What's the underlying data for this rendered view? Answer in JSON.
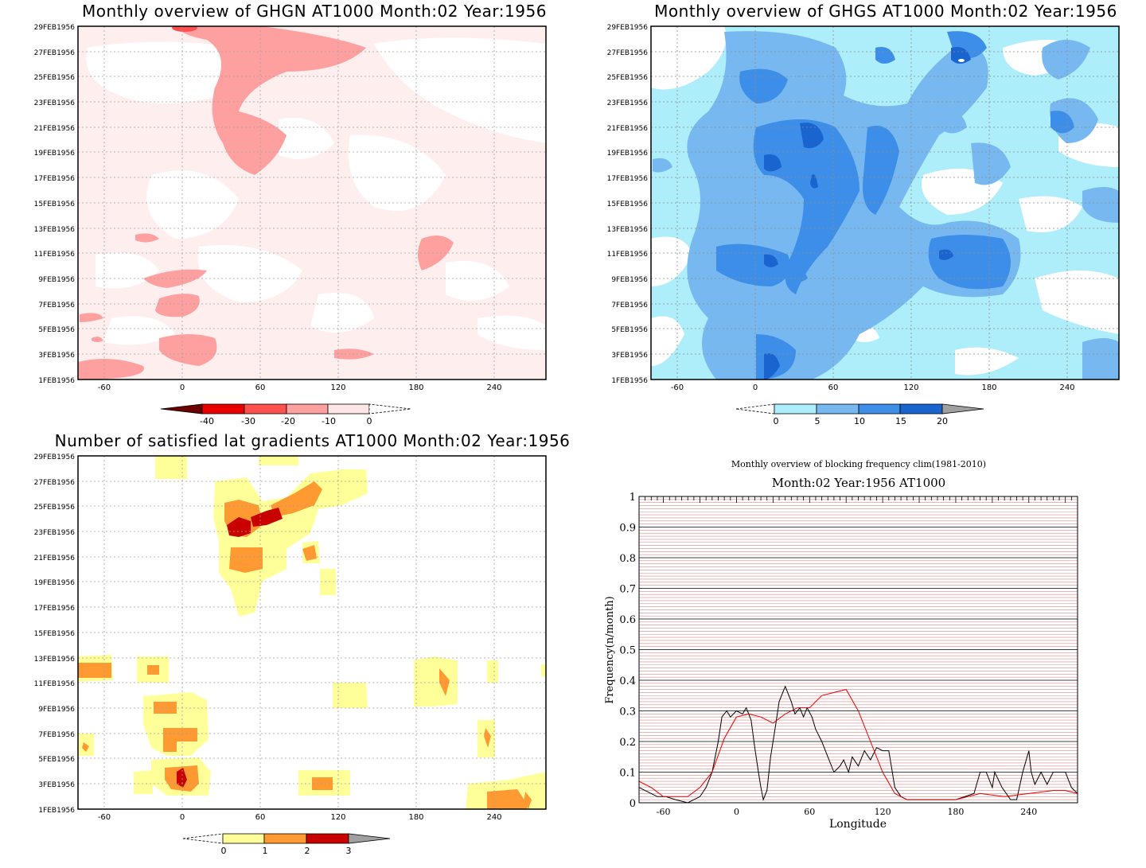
{
  "panels": {
    "ghgn": {
      "title": "Monthly overview of GHGN AT1000 Month:02 Year:1956",
      "y_ticks": [
        "1FEB1956",
        "3FEB1956",
        "5FEB1956",
        "7FEB1956",
        "9FEB1956",
        "11FEB1956",
        "13FEB1956",
        "15FEB1956",
        "17FEB1956",
        "19FEB1956",
        "21FEB1956",
        "23FEB1956",
        "25FEB1956",
        "27FEB1956",
        "29FEB1956"
      ],
      "x_ticks": [
        "-60",
        "0",
        "60",
        "120",
        "180",
        "240"
      ],
      "colorbar": {
        "labels": [
          "-40",
          "-30",
          "-20",
          "-10",
          "0"
        ],
        "colors": [
          "#e80000",
          "#ff5050",
          "#ffa0a0",
          "#ffe6e6"
        ],
        "low_arrow_color": "#6b0000"
      },
      "colors": {
        "background": "#ffeeee",
        "level1": "#ffa0a0",
        "level2": "#ff6060"
      }
    },
    "ghgs": {
      "title": "Monthly overview of GHGS AT1000 Month:02 Year:1956",
      "y_ticks": [
        "1FEB1956",
        "3FEB1956",
        "5FEB1956",
        "7FEB1956",
        "9FEB1956",
        "11FEB1956",
        "13FEB1956",
        "15FEB1956",
        "17FEB1956",
        "19FEB1956",
        "21FEB1956",
        "23FEB1956",
        "25FEB1956",
        "27FEB1956",
        "29FEB1956"
      ],
      "x_ticks": [
        "-60",
        "0",
        "60",
        "120",
        "180",
        "240"
      ],
      "colorbar": {
        "labels": [
          "0",
          "5",
          "10",
          "15",
          "20"
        ],
        "colors": [
          "#aeeefa",
          "#78b8f0",
          "#3c8ee8",
          "#1a64d0"
        ],
        "high_arrow_color": "#a0a0a0"
      },
      "colors": {
        "level1": "#aeeefa",
        "level2": "#78b8f0",
        "level3": "#3c8ee8",
        "level4": "#1a64d0"
      }
    },
    "lat_grad": {
      "title": "Number of satisfied lat gradients AT1000 Month:02 Year:1956",
      "y_ticks": [
        "1FEB1956",
        "3FEB1956",
        "5FEB1956",
        "7FEB1956",
        "9FEB1956",
        "11FEB1956",
        "13FEB1956",
        "15FEB1956",
        "17FEB1956",
        "19FEB1956",
        "21FEB1956",
        "23FEB1956",
        "25FEB1956",
        "27FEB1956",
        "29FEB1956"
      ],
      "x_ticks": [
        "-60",
        "0",
        "60",
        "120",
        "180",
        "240"
      ],
      "colorbar": {
        "labels": [
          "0",
          "1",
          "2",
          "3"
        ],
        "colors": [
          "#ffff9a",
          "#ff9a32",
          "#c80000"
        ],
        "high_arrow_color": "#a0a0a0"
      },
      "colors": {
        "level1": "#ffff9a",
        "level2": "#ff9a32",
        "level3": "#c80000"
      }
    }
  },
  "chart_data": {
    "type": "line",
    "title": "Monthly overview of blocking frequency clim(1981-2010)",
    "subtitle": "Month:02 Year:1956  AT1000",
    "xlabel": "Longitude",
    "ylabel": "Frequency(n/month)",
    "xlim": [
      -80,
      280
    ],
    "ylim": [
      0,
      1
    ],
    "x_ticks": [
      -60,
      0,
      60,
      120,
      180,
      240
    ],
    "y_ticks": [
      "0",
      "0.1",
      "0.2",
      "0.3",
      "0.4",
      "0.5",
      "0.6",
      "0.7",
      "0.8",
      "0.9",
      "1"
    ],
    "grid": true,
    "series": [
      {
        "color": "#000000",
        "x": [
          -80,
          -70,
          -65,
          -58,
          -50,
          -40,
          -30,
          -25,
          -20,
          -15,
          -12,
          -8,
          -5,
          0,
          5,
          8,
          12,
          15,
          18,
          20,
          22,
          25,
          28,
          32,
          35,
          40,
          45,
          48,
          52,
          55,
          58,
          62,
          65,
          70,
          75,
          80,
          85,
          88,
          92,
          95,
          100,
          105,
          110,
          115,
          120,
          125,
          130,
          135,
          140,
          160,
          180,
          195,
          200,
          205,
          210,
          212,
          218,
          225,
          230,
          235,
          240,
          242,
          245,
          250,
          255,
          260,
          265,
          270,
          275,
          280
        ],
        "values": [
          0.05,
          0.03,
          0.02,
          0.02,
          0.01,
          0.0,
          0.02,
          0.05,
          0.1,
          0.2,
          0.28,
          0.3,
          0.28,
          0.3,
          0.29,
          0.31,
          0.27,
          0.18,
          0.1,
          0.05,
          0.01,
          0.04,
          0.15,
          0.25,
          0.33,
          0.38,
          0.33,
          0.29,
          0.31,
          0.28,
          0.31,
          0.28,
          0.24,
          0.2,
          0.15,
          0.1,
          0.12,
          0.14,
          0.1,
          0.15,
          0.12,
          0.17,
          0.14,
          0.18,
          0.17,
          0.17,
          0.05,
          0.02,
          0.01,
          0.01,
          0.01,
          0.03,
          0.1,
          0.1,
          0.05,
          0.1,
          0.05,
          0.01,
          0.01,
          0.1,
          0.17,
          0.1,
          0.06,
          0.1,
          0.06,
          0.1,
          0.1,
          0.1,
          0.05,
          0.03
        ]
      },
      {
        "color": "#e00000",
        "x": [
          -80,
          -70,
          -60,
          -50,
          -40,
          -30,
          -20,
          -10,
          0,
          10,
          20,
          30,
          40,
          50,
          60,
          70,
          80,
          90,
          100,
          110,
          120,
          130,
          140,
          160,
          180,
          200,
          220,
          240,
          260,
          270,
          280
        ],
        "values": [
          0.07,
          0.05,
          0.02,
          0.02,
          0.02,
          0.05,
          0.1,
          0.21,
          0.28,
          0.29,
          0.28,
          0.26,
          0.29,
          0.31,
          0.31,
          0.35,
          0.36,
          0.37,
          0.3,
          0.2,
          0.1,
          0.03,
          0.01,
          0.01,
          0.01,
          0.03,
          0.02,
          0.03,
          0.04,
          0.04,
          0.03
        ]
      }
    ]
  }
}
